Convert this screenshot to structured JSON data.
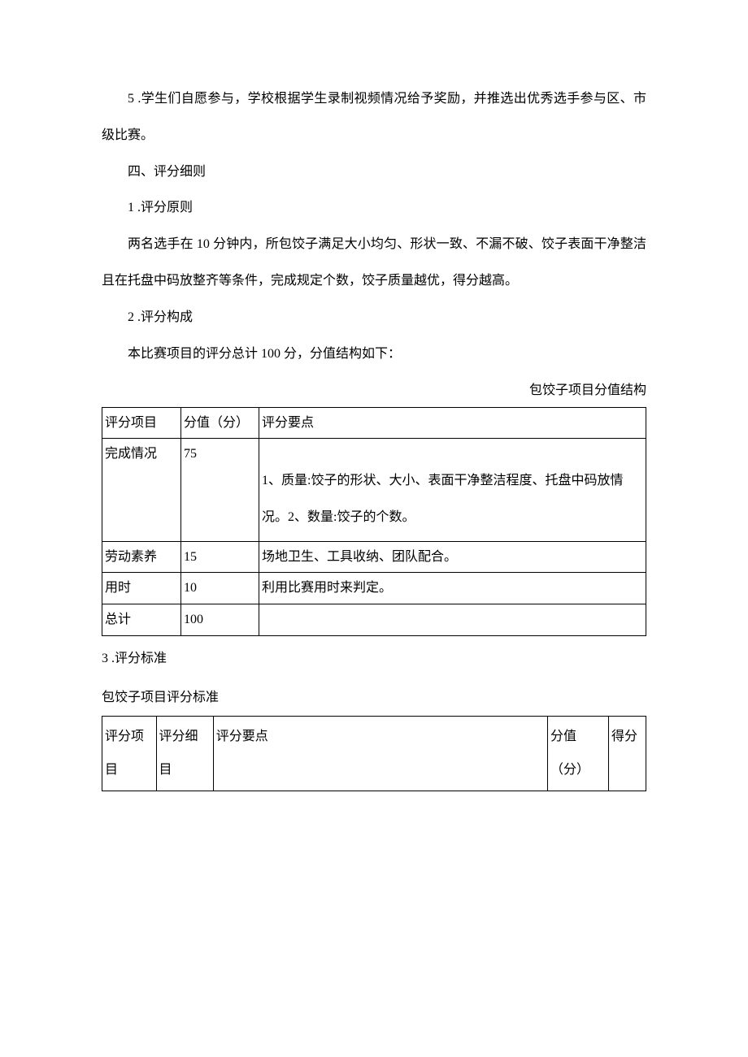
{
  "paragraphs": {
    "p1": "5 .学生们自愿参与，学校根据学生录制视频情况给予奖励，并推选出优秀选手参与区、市级比赛。",
    "p2": "四、评分细则",
    "p3": "1 .评分原则",
    "p4": "两名选手在 10 分钟内，所包饺子满足大小均匀、形状一致、不漏不破、饺子表面干净整洁且在托盘中码放整齐等条件，完成规定个数，饺子质量越优，得分越高。",
    "p5": "2 .评分构成",
    "p6": "本比赛项目的评分总计 100 分，分值结构如下："
  },
  "table1": {
    "caption": "包饺子项目分值结构",
    "header": {
      "c1": "评分项目",
      "c2": "分值（分）",
      "c3": "评分要点"
    },
    "rows": [
      {
        "c1": "完成情况",
        "c2": "75",
        "c3": "1、质量:饺子的形状、大小、表面干净整洁程度、托盘中码放情况。2、数量:饺子的个数。"
      },
      {
        "c1": "劳动素养",
        "c2": "15",
        "c3": "场地卫生、工具收纳、团队配合。"
      },
      {
        "c1": "用时",
        "c2": "10",
        "c3": "利用比赛用时来判定。"
      },
      {
        "c1": "总计",
        "c2": "100",
        "c3": ""
      }
    ]
  },
  "section3": {
    "label": "3 .评分标准",
    "title": "包饺子项目评分标准"
  },
  "table2": {
    "header": {
      "c1": "评分项目",
      "c2": "评分细目",
      "c3": "评分要点",
      "c4": "分值（分）",
      "c5": "得分"
    }
  }
}
